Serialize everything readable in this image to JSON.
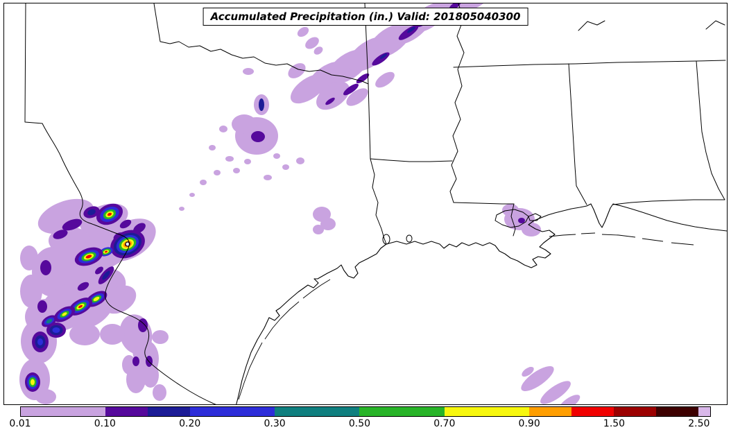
{
  "title_box": {
    "text": "Accumulated Precipitation (in.) Valid: 201805040300"
  },
  "colorbar": {
    "units_label": "in.",
    "total_units": 8.14,
    "ticks": [
      {
        "label": "0.01",
        "unit": 0
      },
      {
        "label": "0.10",
        "unit": 1
      },
      {
        "label": "0.20",
        "unit": 2
      },
      {
        "label": "0.30",
        "unit": 3
      },
      {
        "label": "0.50",
        "unit": 4
      },
      {
        "label": "0.70",
        "unit": 5
      },
      {
        "label": "0.90",
        "unit": 6
      },
      {
        "label": "1.50",
        "unit": 7
      },
      {
        "label": "2.50",
        "unit": 8
      }
    ],
    "segments": [
      {
        "range": "0.01-0.10",
        "color": "#c9a3e0",
        "span": 1
      },
      {
        "range": "0.10-0.15",
        "color": "#56099c",
        "span": 0.5
      },
      {
        "range": "0.15-0.20",
        "color": "#1c1c96",
        "span": 0.5
      },
      {
        "range": "0.20-0.30",
        "color": "#2d2dd9",
        "span": 1
      },
      {
        "range": "0.30-0.50",
        "color": "#0f7f7f",
        "span": 1
      },
      {
        "range": "0.50-0.70",
        "color": "#28b428",
        "span": 1
      },
      {
        "range": "0.70-0.90",
        "color": "#f7f70e",
        "span": 1
      },
      {
        "range": "0.90-1.20",
        "color": "#ff9e00",
        "span": 0.5
      },
      {
        "range": "1.20-1.50",
        "color": "#f00000",
        "span": 0.5
      },
      {
        "range": "1.50-2.00",
        "color": "#9b0000",
        "span": 0.5
      },
      {
        "range": "2.00-2.50",
        "color": "#3d0000",
        "span": 0.5
      },
      {
        "range": "over-2.50",
        "color": "#d9b8ea",
        "span": 0.14
      }
    ]
  }
}
